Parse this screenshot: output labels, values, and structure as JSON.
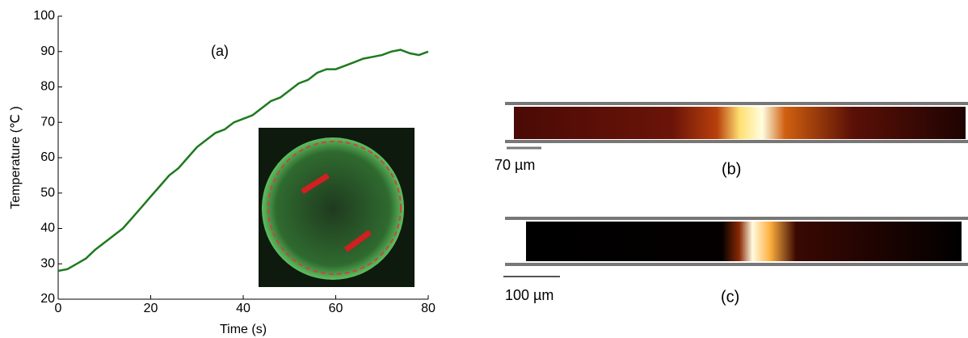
{
  "chart_data": {
    "type": "line",
    "annotation": "(a)",
    "x_label": "Time (s)",
    "y_label": "Temperature (℃ )",
    "x": [
      0,
      2,
      4,
      6,
      8,
      10,
      12,
      14,
      16,
      18,
      20,
      22,
      24,
      26,
      28,
      30,
      32,
      34,
      36,
      38,
      40,
      42,
      44,
      46,
      48,
      50,
      52,
      54,
      56,
      58,
      60,
      62,
      64,
      66,
      68,
      70,
      72,
      74,
      76,
      78,
      80
    ],
    "values": [
      28,
      28.5,
      30,
      31.5,
      34,
      36,
      38,
      40,
      43,
      46,
      49,
      52,
      55,
      57,
      60,
      63,
      65,
      67,
      68,
      70,
      71,
      72,
      74,
      76,
      77,
      79,
      81,
      82,
      84,
      85,
      85,
      86,
      87,
      88,
      88.5,
      89,
      90,
      90.5,
      89.5,
      89,
      90
    ],
    "color": "#1e7a1e",
    "xlim": [
      0,
      80
    ],
    "xticks": [
      0,
      20,
      40,
      60,
      80
    ],
    "ylim": [
      20,
      100
    ],
    "yticks": [
      20,
      30,
      40,
      50,
      60,
      70,
      80,
      90,
      100
    ]
  },
  "panels": [
    {
      "label": "(b)",
      "scale_bar": "70 µm"
    },
    {
      "label": "(c)",
      "scale_bar": "100 µm"
    }
  ]
}
